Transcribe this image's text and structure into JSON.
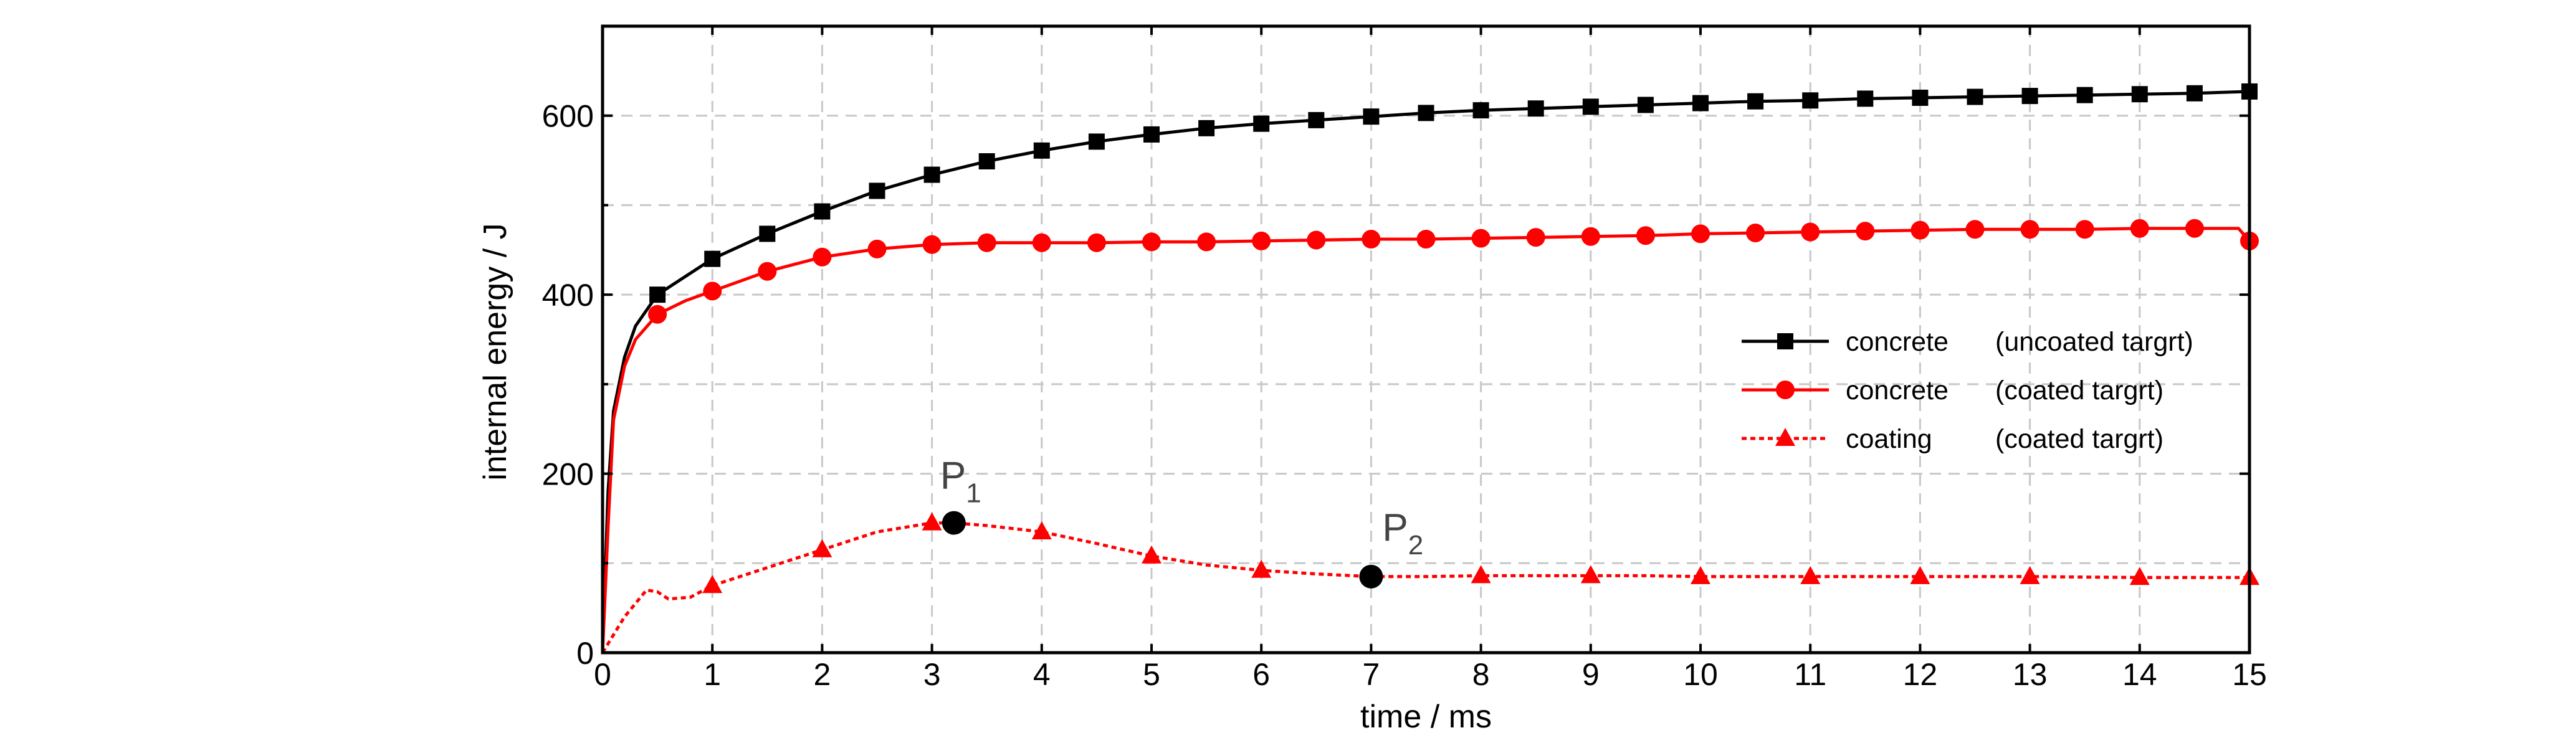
{
  "chart_data": {
    "type": "line",
    "title": "",
    "xlabel": "time / ms",
    "ylabel": "internal energy / J",
    "xlim": [
      0,
      15
    ],
    "ylim": [
      0,
      700
    ],
    "xticks": [
      0,
      1,
      2,
      3,
      4,
      5,
      6,
      7,
      8,
      9,
      10,
      11,
      12,
      13,
      14,
      15
    ],
    "yticks": [
      0,
      200,
      400,
      600
    ],
    "grid": true,
    "legend_position": "right",
    "series": [
      {
        "name": "concrete",
        "note": "(uncoated targrt)",
        "color": "#000000",
        "marker": "square",
        "line_style": "solid",
        "x": [
          0,
          0.05,
          0.1,
          0.2,
          0.3,
          0.5,
          0.75,
          1,
          1.5,
          2,
          2.5,
          3,
          3.5,
          4,
          4.5,
          5,
          5.5,
          6,
          6.5,
          7,
          7.5,
          8,
          8.5,
          9,
          9.5,
          10,
          10.5,
          11,
          11.5,
          12,
          12.5,
          13,
          13.5,
          14,
          14.5,
          15
        ],
        "y": [
          0,
          180,
          270,
          330,
          365,
          400,
          420,
          440,
          468,
          493,
          516,
          534,
          549,
          561,
          571,
          579,
          586,
          591,
          595,
          599,
          603,
          606,
          608,
          610,
          612,
          614,
          616,
          617,
          619,
          620,
          621,
          622,
          623,
          624,
          625,
          627
        ],
        "marker_x": [
          0.5,
          1,
          1.5,
          2,
          2.5,
          3,
          3.5,
          4,
          4.5,
          5,
          5.5,
          6,
          6.5,
          7,
          7.5,
          8,
          8.5,
          9,
          9.5,
          10,
          10.5,
          11,
          11.5,
          12,
          12.5,
          13,
          13.5,
          14,
          14.5,
          15
        ]
      },
      {
        "name": "concrete",
        "note": "(coated targrt)",
        "color": "#ff0000",
        "marker": "circle",
        "line_style": "solid",
        "x": [
          0,
          0.05,
          0.1,
          0.2,
          0.3,
          0.5,
          0.75,
          1,
          1.5,
          2,
          2.5,
          3,
          3.5,
          4,
          4.5,
          5,
          5.5,
          6,
          6.5,
          7,
          7.5,
          8,
          8.5,
          9,
          9.5,
          10,
          10.5,
          11,
          11.5,
          12,
          12.5,
          13,
          13.5,
          14,
          14.5,
          14.9,
          15
        ],
        "y": [
          0,
          140,
          260,
          320,
          350,
          378,
          393,
          404,
          426,
          442,
          451,
          456,
          458,
          458,
          458,
          459,
          459,
          460,
          461,
          462,
          462,
          463,
          464,
          465,
          466,
          468,
          469,
          470,
          471,
          472,
          473,
          473,
          473,
          474,
          474,
          474,
          460
        ],
        "marker_x": [
          0.5,
          1,
          1.5,
          2,
          2.5,
          3,
          3.5,
          4,
          4.5,
          5,
          5.5,
          6,
          6.5,
          7,
          7.5,
          8,
          8.5,
          9,
          9.5,
          10,
          10.5,
          11,
          11.5,
          12,
          12.5,
          13,
          13.5,
          14,
          14.5,
          15
        ]
      },
      {
        "name": "coating",
        "note": "(coated targrt)",
        "color": "#ff0000",
        "marker": "triangle",
        "line_style": "dotted",
        "x": [
          0,
          0.2,
          0.4,
          0.5,
          0.6,
          0.8,
          1,
          1.5,
          2,
          2.5,
          3,
          3.2,
          3.5,
          4,
          4.5,
          5,
          5.5,
          6,
          6.5,
          7,
          7.5,
          8,
          8.5,
          9,
          9.5,
          10,
          11,
          12,
          13,
          14,
          15
        ],
        "y": [
          0,
          40,
          70,
          68,
          60,
          62,
          75,
          95,
          115,
          135,
          145,
          145,
          142,
          135,
          122,
          108,
          98,
          92,
          88,
          85,
          85,
          86,
          86,
          86,
          86,
          85,
          85,
          85,
          85,
          84,
          84
        ],
        "marker_x": [
          1,
          2,
          3,
          4,
          5,
          6,
          8,
          9,
          10,
          11,
          12,
          13,
          14,
          15
        ]
      }
    ],
    "annotations": [
      {
        "label": "P",
        "subscript": "1",
        "x": 3.2,
        "y": 145
      },
      {
        "label": "P",
        "subscript": "2",
        "x": 7.0,
        "y": 85
      }
    ]
  }
}
